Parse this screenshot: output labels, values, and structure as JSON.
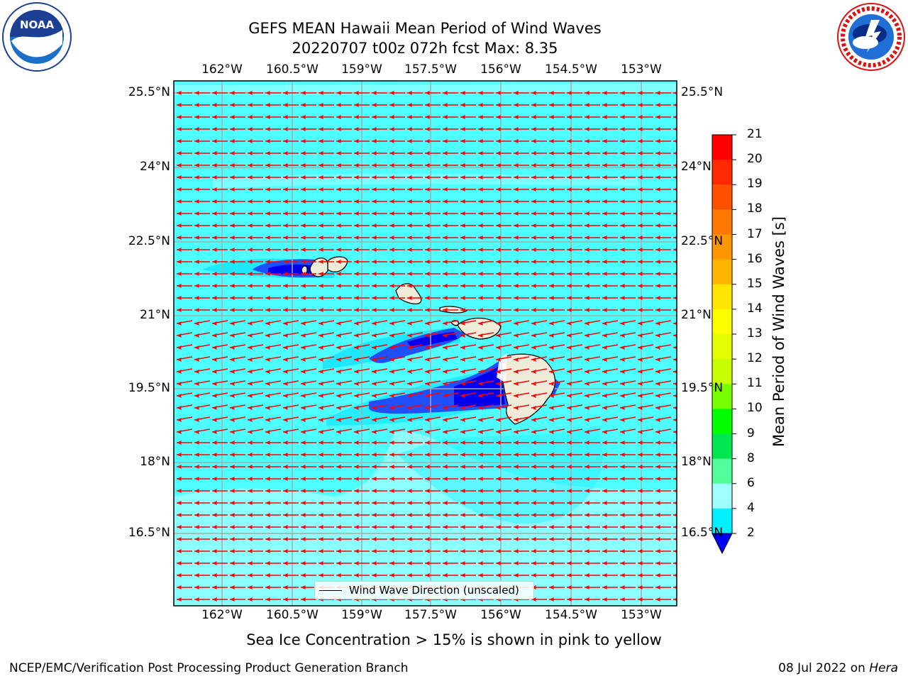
{
  "header": {
    "title_line1": "GEFS MEAN Hawaii Mean Period of Wind Waves",
    "title_line2": "20220707 t00z 072h fcst   Max: 8.35"
  },
  "logos": {
    "left": "noaa-logo",
    "left_text": "NOAA",
    "left_ring_text": "NATIONAL OCEANIC AND ATMOSPHERIC ADMINISTRATION · U.S. DEPARTMENT OF COMMERCE",
    "right": "national-weather-service-logo",
    "right_ring_text": "NATIONAL WEATHER SERVICE"
  },
  "map": {
    "lon_ticks": [
      "162°W",
      "160.5°W",
      "159°W",
      "157.5°W",
      "156°W",
      "154.5°W",
      "153°W"
    ],
    "lat_ticks": [
      "25.5°N",
      "24°N",
      "22.5°N",
      "21°N",
      "19.5°N",
      "18°N",
      "16.5°N"
    ],
    "ocean_color": "#4dffff",
    "light_color": "#8cffff",
    "mid_color": "#00d9ff",
    "deep_blue": "#1e50ff",
    "darkest_blue": "#0000ee",
    "land_color": "#efebd9",
    "arrow_color": "#ff0000",
    "arrow_direction": "west (toward left)"
  },
  "legend": {
    "label": "Wind Wave Direction (unscaled)"
  },
  "colorbar": {
    "label": "Mean Period of Wind Waves [s]",
    "ticks": [
      "21",
      "20",
      "19",
      "18",
      "17",
      "16",
      "15",
      "14",
      "13",
      "12",
      "11",
      "10",
      "9",
      "8",
      "6",
      "4",
      "2"
    ],
    "colors": [
      "#ff0000",
      "#ff2800",
      "#ff5000",
      "#ff7800",
      "#ff9600",
      "#ffb400",
      "#ffe600",
      "#ffff00",
      "#e6ff00",
      "#c8ff00",
      "#78ff00",
      "#00ff00",
      "#00e650",
      "#50ff9a",
      "#a0ffff",
      "#4dffff",
      "#00f0ff",
      "#0080ff",
      "#0000ff"
    ]
  },
  "footer": {
    "subtitle": "Sea Ice Concentration > 15% is shown in pink to yellow",
    "credit": "NCEP/EMC/Verification Post Processing Product Generation Branch",
    "date": "08 Jul 2022 on ",
    "machine": "Hera"
  }
}
